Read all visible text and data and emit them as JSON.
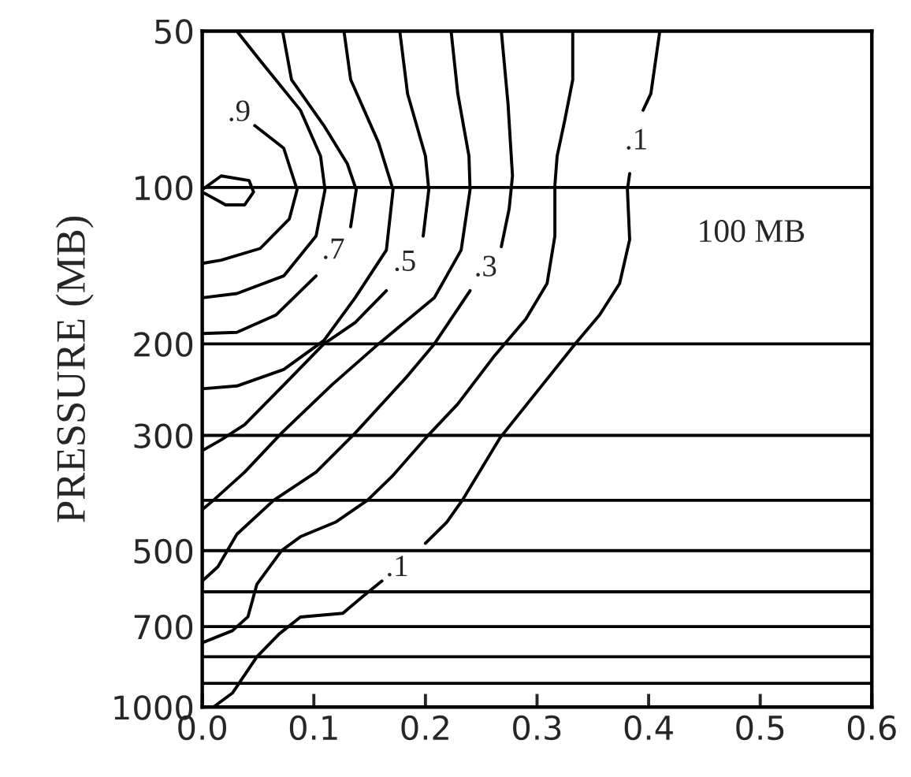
{
  "chart_data": {
    "type": "line",
    "ylabel": "PRESSURE (MB)",
    "log": "y",
    "xlim": [
      0,
      0.6
    ],
    "xticks": [
      {
        "value": 0,
        "label": "0.0"
      },
      {
        "value": 0.1,
        "label": "0.1"
      },
      {
        "value": 0.2,
        "label": "0.2"
      },
      {
        "value": 0.3,
        "label": "0.3"
      },
      {
        "value": 0.4,
        "label": "0.4"
      },
      {
        "value": 0.5,
        "label": "0.5"
      },
      {
        "value": 0.6,
        "label": "0.6"
      }
    ],
    "ylim": [
      1000,
      50
    ],
    "yticks": [
      50,
      100,
      200,
      300,
      500,
      700,
      1000
    ],
    "grid": false,
    "marker": "none",
    "line_style": "solid",
    "series": [
      {
        "color": "#000000",
        "x": [
          0,
          0.017,
          0.042,
          0.046,
          0.038,
          0.021,
          0
        ],
        "values": [
          101,
          95,
          97,
          102,
          108,
          108,
          102
        ]
      },
      {
        "name": ".9",
        "color": "#000000",
        "x": [
          0.047,
          0.073,
          0.085,
          0.078,
          0.052,
          0.017,
          0
        ],
        "values": [
          76,
          84,
          101,
          115,
          131,
          138,
          140
        ]
      },
      {
        "color": "#000000",
        "x": [
          0.031,
          0.052,
          0.088,
          0.106,
          0.11,
          0.102,
          0.073,
          0.031,
          0
        ],
        "values": [
          50,
          57,
          71,
          87,
          101,
          124,
          148,
          160,
          163
        ]
      },
      {
        "name": ".7",
        "color": "#000000",
        "x": [
          0.072,
          0.08,
          0.109,
          0.13,
          0.138,
          0.133,
          null,
          0.102,
          0.066,
          0.031,
          0
        ],
        "values": [
          50,
          62,
          76,
          90,
          101,
          119,
          null,
          148,
          176,
          190,
          191
        ]
      },
      {
        "color": "#000000",
        "x": [
          0.127,
          0.133,
          0.158,
          0.171,
          0.165,
          0.137,
          0.109,
          0.073,
          0.031,
          0
        ],
        "values": [
          50,
          62,
          82,
          101,
          132,
          163,
          197,
          224,
          241,
          244
        ]
      },
      {
        "name": ".5",
        "color": "#000000",
        "x": [
          0.177,
          0.184,
          0.2,
          0.203,
          0.198,
          null,
          0.165,
          0.137,
          0.109,
          0.073,
          0.038,
          0.017,
          0
        ],
        "values": [
          50,
          66,
          87,
          101,
          124,
          null,
          158,
          182,
          200,
          240,
          286,
          306,
          321
        ]
      },
      {
        "color": "#000000",
        "x": [
          0.223,
          0.229,
          0.239,
          0.24,
          0.232,
          0.208,
          0.158,
          0.116,
          0.071,
          0.038,
          0.01,
          0
        ],
        "values": [
          50,
          66,
          87,
          101,
          132,
          163,
          200,
          240,
          297,
          353,
          400,
          417
        ]
      },
      {
        "name": ".3",
        "color": "#000000",
        "x": [
          0.268,
          0.274,
          0.278,
          0.275,
          0.268,
          null,
          0.24,
          0.208,
          0.182,
          0.137,
          0.102,
          0.064,
          0.031,
          0.014,
          0
        ],
        "values": [
          50,
          69,
          95,
          110,
          130,
          null,
          158,
          200,
          233,
          297,
          353,
          400,
          465,
          537,
          572
        ]
      },
      {
        "color": "#000000",
        "x": [
          0.332,
          0.332,
          0.325,
          0.318,
          0.316,
          0.316,
          0.309,
          0.29,
          0.261,
          0.229,
          0.203,
          0.17,
          0.148,
          0.12,
          0.088,
          0.071,
          0.049,
          0.041,
          0.027,
          0
        ],
        "values": [
          50,
          62,
          74,
          87,
          99,
          124,
          153,
          179,
          212,
          261,
          299,
          360,
          400,
          440,
          470,
          500,
          580,
          670,
          713,
          752
        ]
      },
      {
        "name": ".1",
        "color": "#000000",
        "x": [
          0.41,
          0.402,
          0.395,
          null,
          0.383,
          0.381,
          0.383,
          0.374,
          0.356,
          0.335,
          0.302,
          0.267,
          0.233,
          0.219,
          0.2
        ],
        "values": [
          50,
          66,
          71,
          null,
          94,
          101,
          126,
          153,
          176,
          199,
          244,
          303,
          400,
          441,
          484
        ]
      },
      {
        "name": ".1",
        "color": "#000000",
        "x": [
          0.161,
          0.144,
          0.126,
          0.102,
          0.088,
          0.069,
          0.049,
          0.027,
          0.01
        ],
        "values": [
          572,
          612,
          660,
          667,
          671,
          723,
          800,
          940,
          1000
        ]
      }
    ],
    "ref_lines": [
      {
        "axis": "y",
        "value": 100
      },
      {
        "axis": "y",
        "value": 200
      },
      {
        "axis": "y",
        "value": 300
      },
      {
        "axis": "y",
        "value": 400
      },
      {
        "axis": "y",
        "value": 500
      },
      {
        "axis": "y",
        "value": 600
      },
      {
        "axis": "y",
        "value": 700
      },
      {
        "axis": "y",
        "value": 800
      },
      {
        "axis": "y",
        "value": 900
      }
    ],
    "annotations": [
      "100 MB"
    ]
  }
}
